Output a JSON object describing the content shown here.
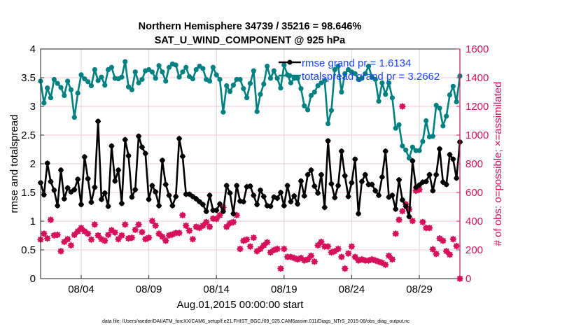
{
  "chart_data": {
    "type": "line",
    "title": [
      "Northern Hemisphere 34739 / 35216 = 98.646%",
      "SAT_U_WIND_COMPONENT @ 925 hPa"
    ],
    "xlabel": "Aug.01,2015 00:00:00 start",
    "ylabel": "rmse and totalspread",
    "ylabel_right": "# of obs: o=possible; ×=assimilated",
    "footer": "data file: /Users/raeder/DAI/ATM_forcXX/CAM6_setup/f.e21.FHIST_BGC.f09_025.CAM6assim.011/Diags_NTrS_2015-08/obs_diag_output.nc",
    "x_unit": "days since Aug.01,2015 00:00:00",
    "x_step_days": 0.25,
    "xlim": [
      0,
      31
    ],
    "ylim": [
      0,
      4
    ],
    "ylim_right": [
      0,
      1600
    ],
    "x_ticks": [
      {
        "day": 3,
        "label": "08/04"
      },
      {
        "day": 8,
        "label": "08/09"
      },
      {
        "day": 13,
        "label": "08/14"
      },
      {
        "day": 18,
        "label": "08/19"
      },
      {
        "day": 23,
        "label": "08/24"
      },
      {
        "day": 28,
        "label": "08/29"
      }
    ],
    "y_ticks": [
      "0",
      "0.5",
      "1",
      "1.5",
      "2",
      "2.5",
      "3",
      "3.5",
      "4"
    ],
    "y_ticks_right": [
      "0",
      "200",
      "400",
      "600",
      "800",
      "1000",
      "1200",
      "1400",
      "1600"
    ],
    "grid": true,
    "legend": {
      "placement": "top-right",
      "entries": [
        "rmse grand pr = 1.6134",
        "totalspread grand pr = 3.2662"
      ]
    },
    "colors": {
      "rmse": "#000000",
      "totalspread": "#008080",
      "obs": "#d6105a",
      "legend_text": "#1a45ff"
    },
    "series": [
      {
        "name": "rmse",
        "axis": "left",
        "values": [
          1.67,
          1.46,
          2.01,
          1.69,
          1.54,
          1.27,
          1.89,
          1.39,
          1.58,
          1.51,
          1.55,
          1.73,
          1.29,
          2.12,
          1.74,
          1.33,
          1.59,
          2.74,
          1.38,
          1.49,
          1.26,
          2.31,
          1.7,
          1.89,
          1.31,
          2.42,
          2.14,
          1.42,
          1.55,
          2.48,
          2.29,
          2.18,
          1.38,
          1.62,
          1.51,
          1.27,
          2.06,
          1.64,
          1.45,
          1.27,
          1.43,
          2.44,
          2.13,
          1.47,
          1.47,
          1.43,
          1.39,
          1.34,
          1.29,
          1.17,
          1.45,
          1.19,
          1.19,
          1.3,
          1.17,
          1.62,
          1.49,
          1.13,
          1.62,
          1.35,
          1.34,
          1.6,
          1.61,
          1.45,
          1.29,
          1.54,
          1.43,
          1.27,
          1.26,
          1.42,
          1.4,
          1.5,
          1.27,
          1.62,
          1.34,
          1.44,
          1.3,
          1.7,
          1.44,
          1.81,
          1.89,
          1.61,
          1.49,
          1.81,
          1.24,
          2.4,
          1.65,
          1.41,
          1.62,
          2.22,
          1.79,
          1.43,
          1.67,
          2.08,
          1.13,
          1.69,
          1.81,
          1.64,
          1.64,
          1.53,
          1.45,
          1.77,
          2.22,
          1.42,
          1.45,
          1.21,
          1.72,
          1.37,
          1.26,
          1.08,
          2.05,
          1.59,
          1.63,
          1.68,
          1.69,
          1.81,
          1.53,
          1.81,
          2.26,
          1.68,
          1.64,
          2.16,
          2.08,
          1.75,
          2.38
        ]
      },
      {
        "name": "totalspread",
        "axis": "left",
        "values": [
          3.44,
          3.06,
          3.32,
          3.15,
          3.47,
          3.4,
          3.33,
          3.19,
          3.44,
          3.29,
          2.81,
          3.23,
          3.55,
          3.48,
          3.43,
          3.36,
          3.64,
          3.45,
          3.51,
          3.37,
          3.64,
          3.68,
          3.49,
          3.48,
          3.51,
          3.78,
          3.34,
          3.29,
          3.6,
          3.41,
          3.47,
          3.62,
          3.64,
          3.6,
          3.49,
          3.71,
          3.6,
          3.44,
          3.68,
          3.74,
          3.72,
          3.51,
          3.6,
          3.68,
          3.52,
          3.48,
          3.64,
          3.7,
          3.66,
          3.47,
          3.44,
          3.68,
          3.55,
          3.47,
          2.9,
          3.36,
          3.26,
          3.37,
          3.47,
          3.47,
          3.31,
          3.15,
          3.4,
          3.62,
          2.91,
          3.21,
          3.39,
          3.7,
          3.49,
          3.62,
          3.49,
          3.32,
          3.72,
          3.55,
          3.41,
          3.49,
          3.49,
          3.31,
          3.01,
          2.94,
          3.19,
          3.25,
          3.36,
          3.41,
          3.45,
          2.7,
          2.93,
          3.64,
          3.7,
          3.25,
          3.57,
          3.64,
          3.6,
          3.57,
          3.47,
          3.49,
          3.57,
          3.7,
          3.51,
          3.47,
          3.09,
          3.41,
          3.21,
          3.41,
          3.15,
          2.62,
          2.68,
          2.31,
          2.24,
          2.1,
          2.29,
          2.23,
          2.23,
          2.39,
          2.75,
          2.47,
          2.48,
          3.02,
          2.97,
          2.66,
          2.83,
          3.2,
          3.35,
          3.08,
          3.53
        ]
      },
      {
        "name": "obs_assimilated",
        "axis": "right",
        "values": [
          272,
          313,
          280,
          410,
          301,
          305,
          191,
          256,
          275,
          232,
          305,
          329,
          353,
          329,
          313,
          272,
          377,
          301,
          275,
          264,
          305,
          337,
          321,
          275,
          301,
          377,
          280,
          285,
          340,
          377,
          324,
          275,
          285,
          402,
          369,
          313,
          292,
          264,
          301,
          308,
          318,
          318,
          442,
          369,
          334,
          275,
          361,
          353,
          369,
          394,
          361,
          418,
          415,
          442,
          496,
          361,
          386,
          394,
          442,
          207,
          264,
          272,
          224,
          285,
          191,
          207,
          232,
          253,
          183,
          199,
          207,
          70,
          207,
          151,
          151,
          143,
          134,
          143,
          126,
          134,
          159,
          118,
          232,
          256,
          224,
          224,
          183,
          191,
          207,
          151,
          70,
          175,
          224,
          151,
          126,
          134,
          126,
          126,
          134,
          126,
          118,
          110,
          97,
          159,
          134,
          313,
          410,
          470,
          518,
          483,
          402,
          612,
          620,
          394,
          353,
          353,
          204,
          172,
          280,
          264,
          191,
          167,
          275,
          227,
          0
        ]
      },
      {
        "name": "obs_possible_outliers",
        "axis": "right",
        "points": [
          {
            "index": 107,
            "value": 1200
          }
        ]
      }
    ]
  }
}
